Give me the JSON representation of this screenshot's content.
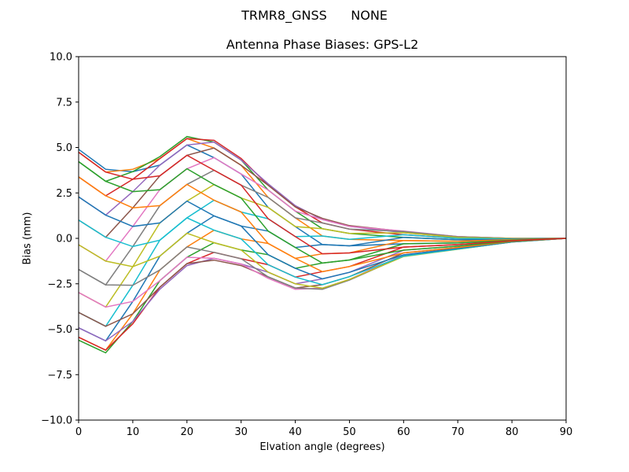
{
  "figure": {
    "suptitle": "TRMR8_GNSS      NONE",
    "title": "Antenna Phase Biases: GPS-L2",
    "xlabel": "Elvation angle (degrees)",
    "ylabel": "Bias (mm)"
  },
  "chart_data": {
    "type": "line",
    "title": "Antenna Phase Biases: GPS-L2",
    "suptitle": "TRMR8_GNSS      NONE",
    "xlabel": "Elvation angle (degrees)",
    "ylabel": "Bias (mm)",
    "xlim": [
      0,
      90
    ],
    "ylim": [
      -10,
      10
    ],
    "xticks": [
      0,
      10,
      20,
      30,
      40,
      50,
      60,
      70,
      80,
      90
    ],
    "yticks": [
      -10.0,
      -7.5,
      -5.0,
      -2.5,
      0.0,
      2.5,
      5.0,
      7.5,
      10.0
    ],
    "ytick_labels": [
      "−10.0",
      "−7.5",
      "−5.0",
      "−2.5",
      "0.0",
      "2.5",
      "5.0",
      "7.5",
      "10.0"
    ],
    "grid": false,
    "legend": "none",
    "x": [
      0,
      5,
      10,
      15,
      20,
      25,
      30,
      35,
      40,
      45,
      50,
      60,
      70,
      80,
      90
    ],
    "series_count": 24,
    "series_note": "one line per azimuth (15 deg steps); series i value at elevation k = profiles[k][(i - shift[k]) mod 24 mirrored onto 0..12]",
    "profiles": [
      [
        4.9,
        4.74,
        4.22,
        3.38,
        2.28,
        1.01,
        -0.35,
        -1.71,
        -2.98,
        -4.08,
        -4.92,
        -5.44,
        -5.6
      ],
      [
        3.8,
        3.65,
        3.14,
        2.34,
        1.28,
        0.06,
        -1.25,
        -2.56,
        -3.78,
        -4.84,
        -5.64,
        -6.15,
        -6.3
      ],
      [
        3.8,
        3.67,
        3.25,
        2.57,
        1.68,
        0.66,
        -0.45,
        -1.56,
        -2.58,
        -3.47,
        -4.15,
        -4.57,
        -4.7
      ],
      [
        4.5,
        4.39,
        4.03,
        3.44,
        2.68,
        1.8,
        0.85,
        -0.1,
        -0.98,
        -1.74,
        -2.33,
        -2.69,
        -2.8
      ],
      [
        5.6,
        5.49,
        5.14,
        4.57,
        3.83,
        2.97,
        2.05,
        1.13,
        0.28,
        -0.47,
        -1.04,
        -1.39,
        -1.5
      ],
      [
        5.4,
        5.3,
        4.97,
        4.44,
        3.75,
        2.96,
        2.1,
        1.24,
        0.45,
        -0.24,
        -0.77,
        -1.1,
        -1.2
      ],
      [
        4.4,
        4.31,
        4.02,
        3.54,
        2.93,
        2.22,
        1.45,
        0.68,
        -0.03,
        -0.64,
        -1.12,
        -1.41,
        -1.5
      ],
      [
        3.0,
        2.92,
        2.66,
        2.25,
        1.7,
        1.08,
        0.4,
        -0.28,
        -0.9,
        -1.45,
        -1.86,
        -2.12,
        -2.2
      ],
      [
        1.8,
        1.73,
        1.5,
        1.13,
        0.65,
        0.1,
        -0.5,
        -1.1,
        -1.65,
        -2.13,
        -2.5,
        -2.73,
        -2.8
      ],
      [
        1.1,
        1.04,
        0.85,
        0.53,
        0.13,
        -0.34,
        -0.85,
        -1.36,
        -1.83,
        -2.23,
        -2.55,
        -2.74,
        -2.8
      ],
      [
        0.7,
        0.66,
        0.51,
        0.27,
        -0.05,
        -0.41,
        -0.8,
        -1.19,
        -1.55,
        -1.87,
        -2.11,
        -2.26,
        -2.3
      ],
      [
        0.4,
        0.38,
        0.31,
        0.2,
        0.05,
        -0.12,
        -0.3,
        -0.48,
        -0.65,
        -0.8,
        -0.91,
        -0.98,
        -1.0
      ],
      [
        0.1,
        0.09,
        0.05,
        0.0,
        -0.08,
        -0.16,
        -0.25,
        -0.34,
        -0.43,
        -0.5,
        -0.55,
        -0.59,
        -0.6
      ],
      [
        0.0,
        0.0,
        -0.01,
        -0.03,
        -0.05,
        -0.07,
        -0.1,
        -0.13,
        -0.15,
        -0.17,
        -0.19,
        -0.2,
        -0.2
      ],
      [
        0,
        0,
        0,
        0,
        0,
        0,
        0,
        0,
        0,
        0,
        0,
        0,
        0
      ]
    ],
    "shift": [
      0,
      0,
      1,
      2,
      2,
      3,
      3,
      4,
      4,
      5,
      5,
      6,
      6,
      6,
      6
    ],
    "envelope": {
      "max": [
        4.9,
        3.8,
        3.8,
        4.5,
        5.6,
        5.4,
        4.4,
        3.0,
        1.8,
        1.1,
        0.7,
        0.4,
        0.1,
        0.0,
        0.0
      ],
      "min": [
        -5.6,
        -6.3,
        -4.7,
        -2.8,
        -1.5,
        -1.2,
        -1.5,
        -2.2,
        -2.8,
        -2.8,
        -2.3,
        -1.0,
        -0.6,
        -0.2,
        0.0
      ]
    },
    "colors": [
      "#1f77b4",
      "#ff7f0e",
      "#2ca02c",
      "#d62728",
      "#9467bd",
      "#8c564b",
      "#e377c2",
      "#7f7f7f",
      "#bcbd22",
      "#17becf"
    ]
  }
}
